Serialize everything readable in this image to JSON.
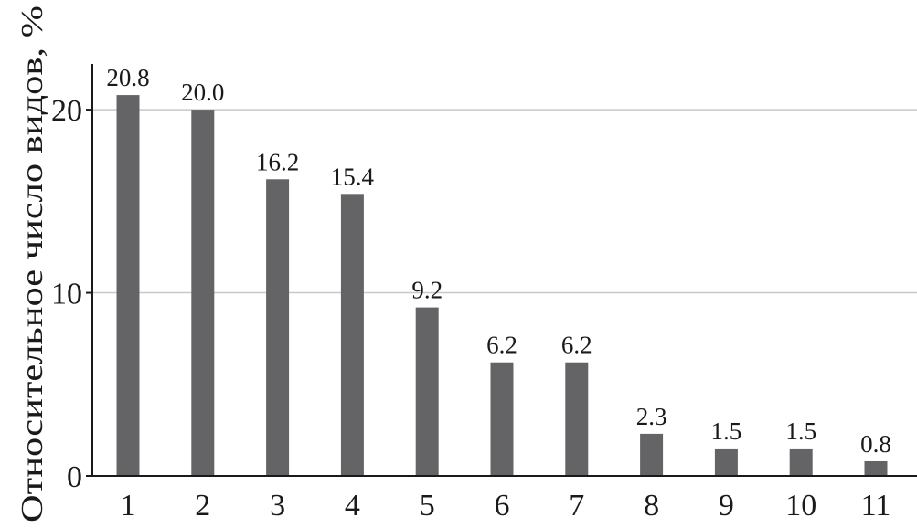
{
  "chart_data": {
    "type": "bar",
    "categories": [
      "1",
      "2",
      "3",
      "4",
      "5",
      "6",
      "7",
      "8",
      "9",
      "10",
      "11"
    ],
    "values": [
      20.8,
      20.0,
      16.2,
      15.4,
      9.2,
      6.2,
      6.2,
      2.3,
      1.5,
      1.5,
      0.8
    ],
    "value_labels": [
      "20.8",
      "20.0",
      "16.2",
      "15.4",
      "9.2",
      "6.2",
      "6.2",
      "2.3",
      "1.5",
      "1.5",
      "0.8"
    ],
    "xlabel": "",
    "ylabel": "Относительное число видов, %",
    "ylim": [
      0,
      22.5
    ],
    "yticks": [
      0,
      10,
      20
    ],
    "ytick_labels": [
      "0",
      "10",
      "20"
    ],
    "grid": "horizontal",
    "colors": {
      "bar": "#646466",
      "grid": "#c8c8c8",
      "axis": "#1a1a1a"
    }
  }
}
